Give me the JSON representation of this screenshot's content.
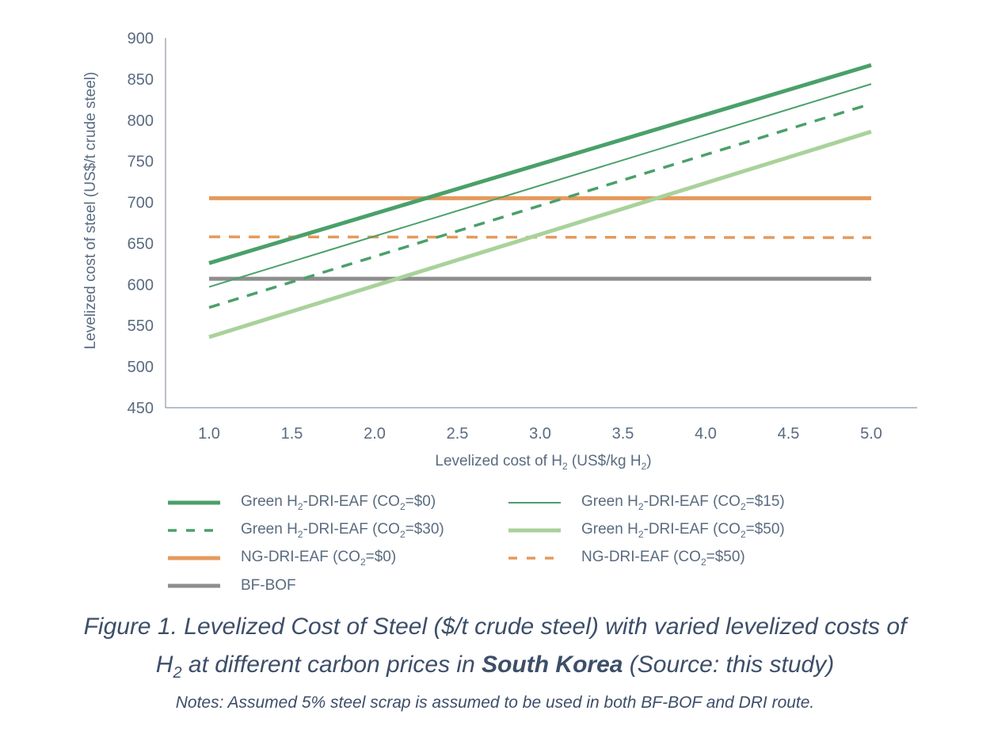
{
  "chart_data": {
    "type": "line",
    "title": "",
    "xlabel": "Levelized cost of H2 (US$/kg H2)",
    "xlabel_parts": {
      "pre": "Levelized cost of H",
      "sub1": "2",
      "mid": " (US$/kg H",
      "sub2": "2",
      "post": ")"
    },
    "ylabel": "Levelized cost of steel (US$/t crude steel)",
    "xlim": [
      1.0,
      5.0
    ],
    "ylim": [
      450,
      900
    ],
    "x_ticks": [
      "1.0",
      "1.5",
      "2.0",
      "2.5",
      "3.0",
      "3.5",
      "4.0",
      "4.5",
      "5.0"
    ],
    "y_ticks": [
      "450",
      "500",
      "550",
      "600",
      "650",
      "700",
      "750",
      "800",
      "850",
      "900"
    ],
    "grid": false,
    "legend_position": "bottom",
    "x": [
      1.0,
      5.0
    ],
    "series": [
      {
        "name": "Green H2-DRI-EAF (CO2=$0)",
        "label_pre": "Green H",
        "label_mid": "-DRI-EAF (CO",
        "label_post": "=$0)",
        "color": "#4aa06a",
        "style": "solid",
        "weight": "thick",
        "values": [
          626,
          867
        ]
      },
      {
        "name": "Green H2-DRI-EAF (CO2=$15)",
        "label_pre": "Green H",
        "label_mid": "-DRI-EAF (CO",
        "label_post": "=$15)",
        "color": "#4aa06a",
        "style": "solid",
        "weight": "thin",
        "values": [
          597,
          844
        ]
      },
      {
        "name": "Green H2-DRI-EAF (CO2=$30)",
        "label_pre": "Green H",
        "label_mid": "-DRI-EAF (CO",
        "label_post": "=$30)",
        "color": "#4aa06a",
        "style": "dashed",
        "weight": "medium",
        "values": [
          572,
          820
        ]
      },
      {
        "name": "Green H2-DRI-EAF (CO2=$50)",
        "label_pre": "Green H",
        "label_mid": "-DRI-EAF (CO",
        "label_post": "=$50)",
        "color": "#a9d29a",
        "style": "solid",
        "weight": "thick",
        "values": [
          536,
          786
        ]
      },
      {
        "name": "NG-DRI-EAF (CO2=$0)",
        "label_pre": "NG-DRI-EAF (CO",
        "label_mid": "",
        "label_post": "=$0)",
        "color": "#e59a5c",
        "style": "solid",
        "weight": "thick",
        "values": [
          705,
          705
        ]
      },
      {
        "name": "NG-DRI-EAF (CO2=$50)",
        "label_pre": "NG-DRI-EAF  (CO",
        "label_mid": "",
        "label_post": "=$50)",
        "color": "#e59a5c",
        "style": "dashed",
        "weight": "medium",
        "values": [
          658,
          657
        ]
      },
      {
        "name": "BF-BOF",
        "label_pre": "BF-BOF",
        "label_mid": "",
        "label_post": "",
        "color": "#8e8e8e",
        "style": "solid",
        "weight": "thick",
        "values": [
          607,
          607
        ]
      }
    ]
  },
  "caption": {
    "line1": "Figure 1. Levelized Cost of Steel ($/t crude steel) with varied levelized costs of",
    "line2_h": "H",
    "line2_sub": "2",
    "line2_pre": " at different carbon prices in ",
    "line2_bold": "South Korea",
    "line2_post": " (Source: this study)",
    "notes": "Notes: Assumed 5% steel scrap is assumed to be used in both BF-BOF and DRI route."
  },
  "colors": {
    "axis": "#8a97a8",
    "text": "#5a6b80",
    "caption": "#3d4e68"
  }
}
